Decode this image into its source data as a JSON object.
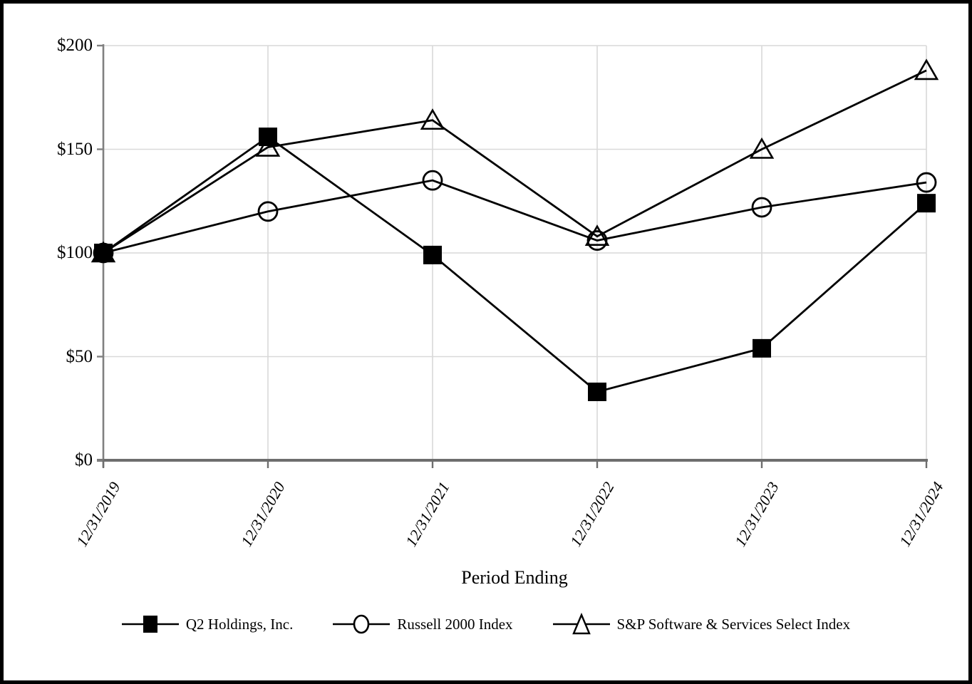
{
  "chart_data": {
    "type": "line",
    "title": "",
    "xlabel": "Period Ending",
    "ylabel": "",
    "x": [
      "12/31/2019",
      "12/31/2020",
      "12/31/2021",
      "12/31/2022",
      "12/31/2023",
      "12/31/2024"
    ],
    "series": [
      {
        "name": "Q2 Holdings, Inc.",
        "marker": "square",
        "values": [
          100,
          156,
          99,
          33,
          54,
          124
        ]
      },
      {
        "name": "Russell 2000 Index",
        "marker": "circle",
        "values": [
          100,
          120,
          135,
          106,
          122,
          134
        ]
      },
      {
        "name": "S&P Software & Services Select Index",
        "marker": "triangle",
        "values": [
          100,
          151,
          164,
          108,
          150,
          188
        ]
      }
    ],
    "y_ticks": [
      {
        "label": "$200",
        "value": 200
      },
      {
        "label": "$150",
        "value": 150
      },
      {
        "label": "$100",
        "value": 100
      },
      {
        "label": "$50",
        "value": 50
      },
      {
        "label": "$0",
        "value": 0
      }
    ],
    "ylim": [
      0,
      200
    ],
    "grid": true,
    "legend_position": "bottom",
    "colors": {
      "series": "#000000",
      "gridline": "#d9d9d9",
      "x_axis": "#6e6e6e",
      "y_axis": "#808080",
      "background": "#ffffff",
      "border": "#000000"
    }
  }
}
